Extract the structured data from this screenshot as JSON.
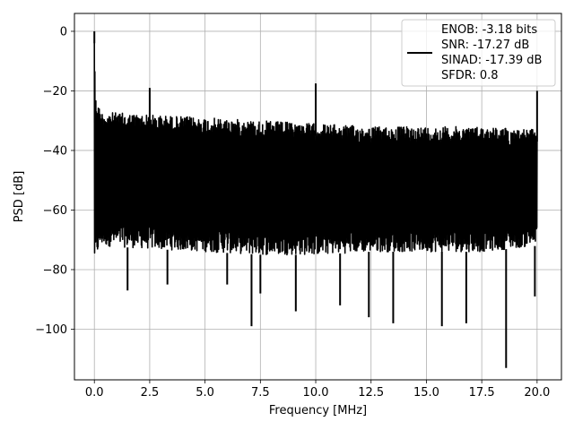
{
  "chart_data": {
    "type": "line",
    "xlabel": "Frequency [MHz]",
    "ylabel": "PSD [dB]",
    "xlim": [
      -0.9,
      21.1
    ],
    "ylim": [
      -117,
      6
    ],
    "x_ticks": [
      0.0,
      2.5,
      5.0,
      7.5,
      10.0,
      12.5,
      15.0,
      17.5,
      20.0
    ],
    "x_tick_labels": [
      "0.0",
      "2.5",
      "5.0",
      "7.5",
      "10.0",
      "12.5",
      "15.0",
      "17.5",
      "20.0"
    ],
    "y_ticks": [
      0,
      -20,
      -40,
      -60,
      -80,
      -100
    ],
    "y_tick_labels": [
      "0",
      "−20",
      "−40",
      "−60",
      "−80",
      "−100"
    ],
    "grid": true,
    "legend_placement": "top-right",
    "series": [
      {
        "name": "ENOB: -3.18 bits\nSNR: -17.27 dB\nSINAD: -17.39 dB\nSFDR: 0.8",
        "color": "#000000",
        "x_range": [
          0.0,
          20.0
        ],
        "upper_envelope": [
          [
            0.0,
            0
          ],
          [
            0.05,
            -22
          ],
          [
            0.3,
            -27
          ],
          [
            2.5,
            -28
          ],
          [
            5.0,
            -29
          ],
          [
            7.5,
            -30
          ],
          [
            10.0,
            -31
          ],
          [
            12.5,
            -32
          ],
          [
            15.0,
            -32
          ],
          [
            17.5,
            -32
          ],
          [
            20.0,
            -33
          ]
        ],
        "lower_envelope": [
          [
            0.0,
            -77
          ],
          [
            0.3,
            -72
          ],
          [
            2.5,
            -73
          ],
          [
            5.0,
            -74
          ],
          [
            7.5,
            -75
          ],
          [
            10.0,
            -75
          ],
          [
            12.5,
            -74
          ],
          [
            15.0,
            -74
          ],
          [
            17.5,
            -74
          ],
          [
            20.0,
            -72
          ]
        ],
        "peaks": [
          {
            "x": 0.0,
            "y": 0
          },
          {
            "x": 2.5,
            "y": -19
          },
          {
            "x": 10.0,
            "y": -17.5
          },
          {
            "x": 20.0,
            "y": -20
          }
        ],
        "dips": [
          {
            "x": 1.5,
            "y": -87
          },
          {
            "x": 3.3,
            "y": -85
          },
          {
            "x": 6.0,
            "y": -85
          },
          {
            "x": 7.1,
            "y": -99
          },
          {
            "x": 7.5,
            "y": -88
          },
          {
            "x": 9.1,
            "y": -94
          },
          {
            "x": 11.1,
            "y": -92
          },
          {
            "x": 12.4,
            "y": -96
          },
          {
            "x": 13.5,
            "y": -98
          },
          {
            "x": 15.7,
            "y": -99
          },
          {
            "x": 16.8,
            "y": -98
          },
          {
            "x": 18.6,
            "y": -113
          },
          {
            "x": 19.9,
            "y": -89
          }
        ]
      }
    ]
  },
  "legend": {
    "lines": [
      "ENOB: -3.18 bits",
      "SNR: -17.27 dB",
      "SINAD: -17.39 dB",
      "SFDR: 0.8"
    ]
  }
}
